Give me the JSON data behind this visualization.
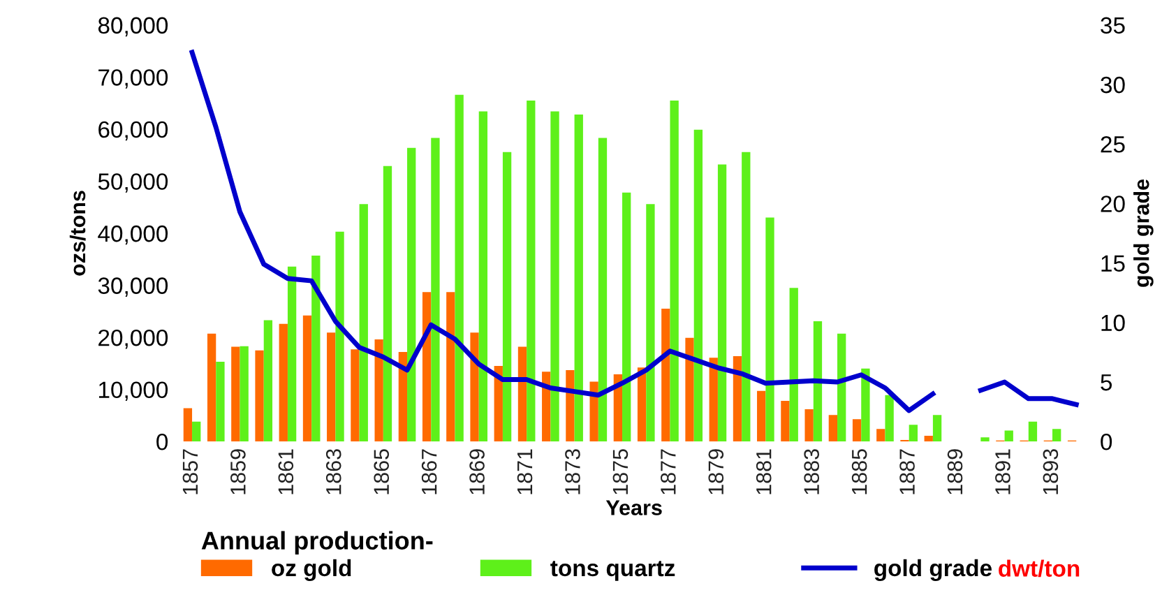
{
  "chart_data": {
    "type": "bar",
    "categories": [
      "1857",
      null,
      "1859",
      null,
      "1861",
      null,
      "1863",
      null,
      "1865",
      null,
      "1867",
      null,
      "1869",
      null,
      "1871",
      null,
      "1873",
      null,
      "1875",
      null,
      "1877",
      null,
      "1879",
      null,
      "1881",
      null,
      "1883",
      null,
      "1885",
      null,
      "1887",
      null,
      "1889",
      null,
      "1891",
      null,
      "1893",
      null
    ],
    "series": [
      {
        "name": "oz gold",
        "color": "#ff6a00",
        "values": [
          6400,
          20700,
          18200,
          17500,
          22600,
          24200,
          20900,
          17700,
          19600,
          17200,
          28700,
          28700,
          20900,
          14500,
          18200,
          13400,
          13700,
          11500,
          12900,
          14200,
          25500,
          19900,
          16100,
          16400,
          9700,
          7800,
          6200,
          5100,
          4300,
          2400,
          300,
          1100,
          null,
          null,
          200,
          200,
          200,
          200
        ]
      },
      {
        "name": "tons quartz",
        "color": "#5ef01a",
        "values": [
          3800,
          15300,
          18300,
          23300,
          33600,
          35700,
          40300,
          45600,
          52900,
          56400,
          58300,
          66600,
          63400,
          55600,
          65500,
          63400,
          62800,
          58300,
          47800,
          45600,
          65500,
          59900,
          53200,
          55600,
          43000,
          29500,
          23100,
          20700,
          14000,
          8900,
          3200,
          5100,
          null,
          800,
          2100,
          3800,
          2400,
          null
        ]
      },
      {
        "name": "gold grade",
        "type": "line",
        "axis": "y2",
        "color": "#0000cc",
        "values": [
          32.7,
          26.4,
          19.3,
          14.9,
          13.7,
          13.5,
          10.1,
          7.9,
          7.1,
          6.0,
          9.8,
          8.6,
          6.5,
          5.2,
          5.2,
          4.5,
          4.2,
          3.9,
          4.9,
          6.0,
          7.6,
          6.9,
          6.2,
          5.7,
          4.9,
          5.0,
          5.1,
          5.0,
          5.6,
          4.5,
          2.6,
          4.0,
          null,
          4.3,
          5.0,
          3.6,
          3.6,
          3.1
        ]
      }
    ],
    "ylim": [
      0,
      80000
    ],
    "yticks": [
      {
        "value": 0,
        "label": "0"
      },
      {
        "value": 10000,
        "label": "10,000"
      },
      {
        "value": 20000,
        "label": "20,000"
      },
      {
        "value": 30000,
        "label": "30,000"
      },
      {
        "value": 40000,
        "label": "40,000"
      },
      {
        "value": 50000,
        "label": "50,000"
      },
      {
        "value": 60000,
        "label": "60,000"
      },
      {
        "value": 70000,
        "label": "70,000"
      },
      {
        "value": 80000,
        "label": "80,000"
      }
    ],
    "y2lim": [
      0,
      35
    ],
    "y2ticks": [
      0,
      5,
      10,
      15,
      20,
      25,
      30,
      35
    ],
    "ylabel": "ozs/tons",
    "y2label": "gold grade",
    "xlabel": "Years",
    "legend_title": "Annual production-",
    "legend": "bottom",
    "annotations": [
      "dwt/ton"
    ],
    "grid": false
  }
}
